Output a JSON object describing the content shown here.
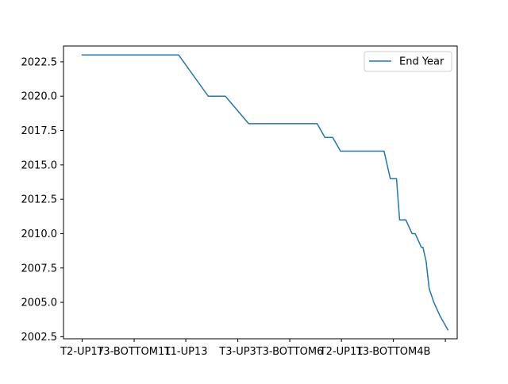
{
  "chart_data": {
    "type": "line",
    "categories": [
      "T2-UP17",
      "T3-BOTTOM11",
      "T1-UP13",
      "T3-UP3",
      "T3-BOTTOM6",
      "T2-UP11",
      "T3-BOTTOM4B",
      ""
    ],
    "x": [
      0,
      3.1,
      4.05,
      4.6,
      5.35,
      6.1,
      6.3,
      6.5,
      6.7,
      7.05,
      7.3,
      7.55,
      7.8,
      8.05,
      8.3,
      8.4,
      8.55,
      8.6,
      8.7,
      8.75,
      8.85,
      8.95,
      9.2,
      9.4,
      9.7,
      9.9,
      10.1,
      10.2,
      10.4,
      10.6,
      10.7,
      10.9,
      10.95,
      11.05,
      11.15,
      11.3,
      11.5,
      11.75
    ],
    "series": [
      {
        "name": "End Year",
        "values": [
          2023,
          2023,
          2020,
          2020,
          2018,
          2018,
          2018,
          2018,
          2018,
          2018,
          2018,
          2018,
          2017,
          2017,
          2016,
          2016,
          2016,
          2016,
          2016,
          2016,
          2016,
          2016,
          2016,
          2016,
          2016,
          2014,
          2014,
          2011,
          2011,
          2010,
          2010,
          2009,
          2009,
          2008,
          2006,
          2005,
          2004,
          2003
        ],
        "color": "#1f77b4"
      }
    ],
    "ylim": [
      2002.35,
      2023.65
    ],
    "yticks": [
      2002.5,
      2005.0,
      2007.5,
      2010.0,
      2012.5,
      2015.0,
      2017.5,
      2020.0,
      2022.5
    ],
    "ytick_labels": [
      "2002.5",
      "2005.0",
      "2007.5",
      "2010.0",
      "2012.5",
      "2015.0",
      "2017.5",
      "2020.0",
      "2022.5"
    ],
    "xtick_positions": [
      0,
      1.67,
      3.33,
      5.0,
      6.67,
      8.33,
      10.0,
      11.67
    ],
    "grid": false,
    "legend": "top-right",
    "title": "",
    "xlabel": "",
    "ylabel": ""
  }
}
